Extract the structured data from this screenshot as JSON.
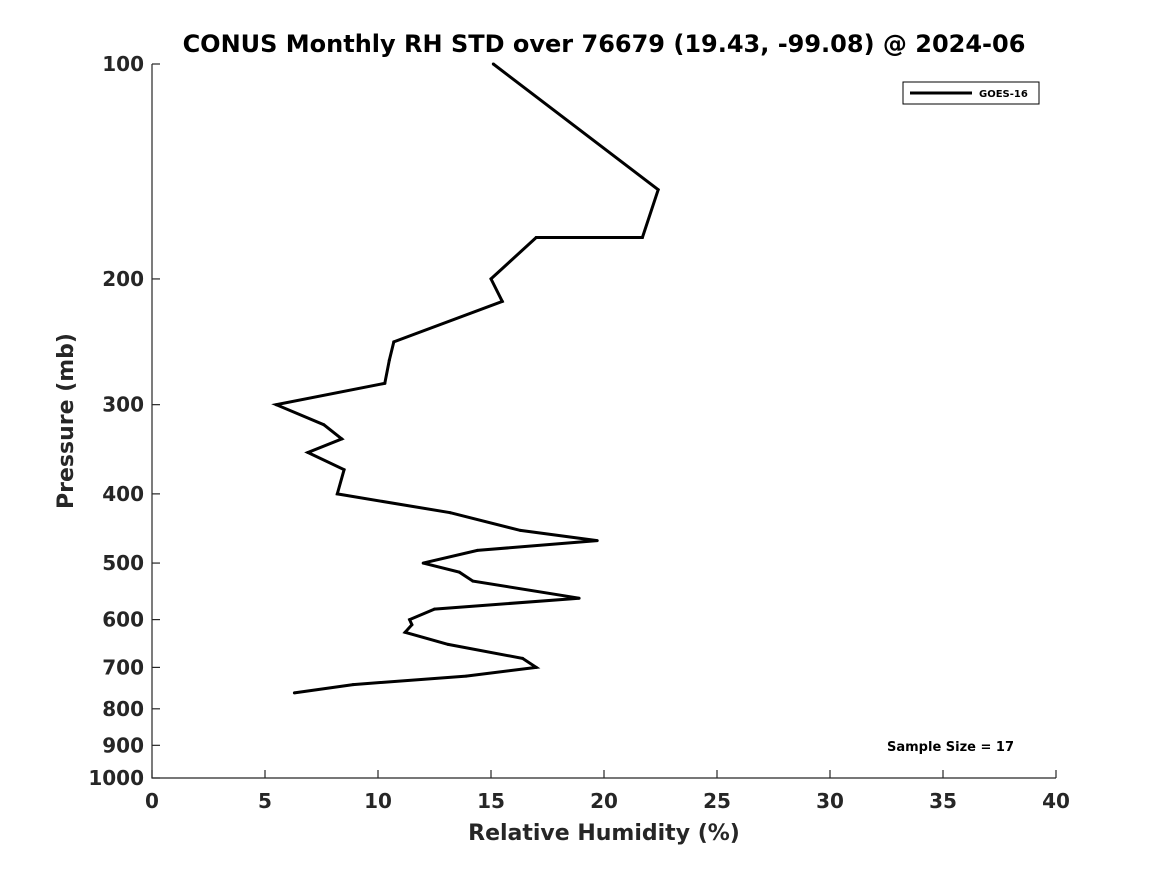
{
  "chart_data": {
    "type": "line",
    "title": "CONUS Monthly RH STD over 76679 (19.43, -99.08) @ 2024-06",
    "xlabel": "Relative Humidity (%)",
    "ylabel": "Pressure (mb)",
    "xlim": [
      0,
      40
    ],
    "ylim": [
      100,
      1000
    ],
    "y_scale": "log",
    "y_reversed": true,
    "grid": false,
    "legend_position": "top-right",
    "x_ticks": [
      "0",
      "5",
      "10",
      "15",
      "20",
      "25",
      "30",
      "35",
      "40"
    ],
    "y_ticks": [
      "100",
      "200",
      "300",
      "400",
      "500",
      "600",
      "700",
      "800",
      "900",
      "1000"
    ],
    "annotation": "Sample Size = 17",
    "series": [
      {
        "name": "GOES-16",
        "color": "#000000",
        "points": [
          [
            15.1,
            100
          ],
          [
            22.4,
            150
          ],
          [
            21.7,
            175
          ],
          [
            17.0,
            175
          ],
          [
            15.0,
            200
          ],
          [
            15.5,
            215
          ],
          [
            10.7,
            245
          ],
          [
            10.5,
            260
          ],
          [
            10.3,
            280
          ],
          [
            5.5,
            300
          ],
          [
            7.6,
            320
          ],
          [
            8.4,
            335
          ],
          [
            6.9,
            350
          ],
          [
            8.5,
            370
          ],
          [
            8.2,
            400
          ],
          [
            13.2,
            425
          ],
          [
            16.3,
            450
          ],
          [
            19.7,
            465
          ],
          [
            14.4,
            480
          ],
          [
            12.0,
            500
          ],
          [
            13.6,
            515
          ],
          [
            14.2,
            530
          ],
          [
            18.9,
            560
          ],
          [
            12.5,
            580
          ],
          [
            11.4,
            600
          ],
          [
            11.5,
            610
          ],
          [
            11.2,
            625
          ],
          [
            13.1,
            650
          ],
          [
            16.4,
            680
          ],
          [
            17.0,
            700
          ],
          [
            13.9,
            720
          ],
          [
            8.9,
            740
          ],
          [
            6.3,
            760
          ]
        ]
      }
    ]
  }
}
